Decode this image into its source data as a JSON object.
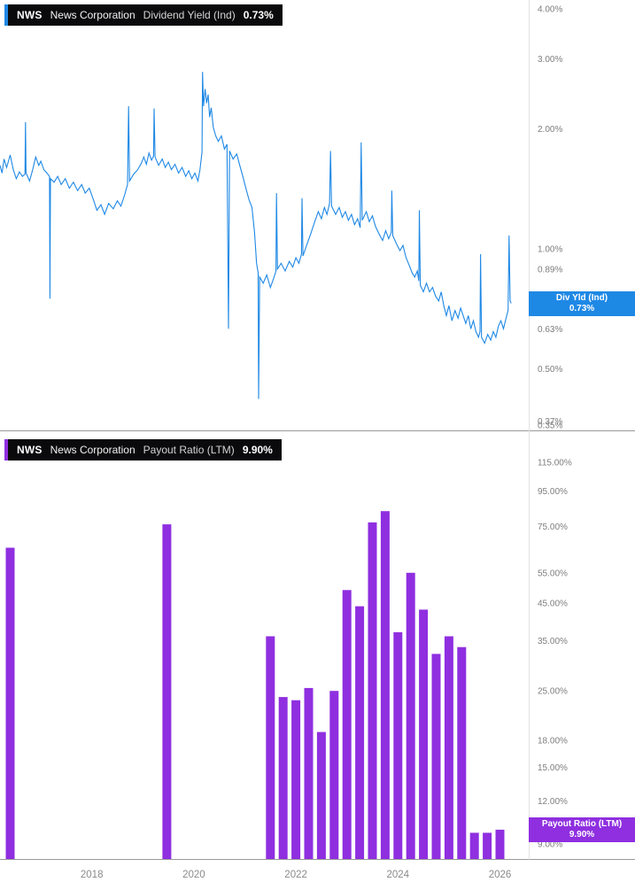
{
  "panes": [
    {
      "legend": {
        "ticker": "NWS",
        "company": "News Corporation",
        "metric": "Dividend Yield (Ind)",
        "value": "0.73%"
      },
      "flag": {
        "line1": "Div Yld (Ind)",
        "line2": "0.73%"
      },
      "accent_color": "#1e88e5"
    },
    {
      "legend": {
        "ticker": "NWS",
        "company": "News Corporation",
        "metric": "Payout Ratio (LTM)",
        "value": "9.90%"
      },
      "flag": {
        "line1": "Payout Ratio (LTM)",
        "line2": "9.90%"
      },
      "accent_color": "#8f2fe0"
    }
  ],
  "x_axis": {
    "years": [
      2018,
      2020,
      2022,
      2024,
      2026
    ],
    "labels": [
      "2018",
      "2020",
      "2022",
      "2024",
      "2026"
    ]
  },
  "colors": {
    "line_blue": "#1e88e5",
    "bar_purple": "#8f2fe0",
    "tick_text": "#7d7d7d",
    "year_text": "#8a8a8a",
    "divider": "#9a9a9a",
    "axis_vertical": "#e2e2e2",
    "plot_bg": "#ffffff",
    "legend_bg": "#0a0a0c"
  },
  "chart_data": [
    {
      "type": "line",
      "title": "NWS News Corporation Dividend Yield (Ind)",
      "series_name": "Dividend Yield (Ind)",
      "unit": "%",
      "color": "#1e88e5",
      "y_scale": "log",
      "last_value": 0.73,
      "y_ticks": [
        4.0,
        3.0,
        2.0,
        1.0,
        0.89,
        0.63,
        0.5,
        0.37,
        0.35
      ],
      "y_tick_labels": [
        "4.00%",
        "3.00%",
        "2.00%",
        "1.00%",
        "0.89%",
        "0.63%",
        "0.50%",
        "0.37%",
        "0.35%"
      ],
      "points": [
        [
          2016.2,
          1.62
        ],
        [
          2016.24,
          1.55
        ],
        [
          2016.28,
          1.68
        ],
        [
          2016.33,
          1.6
        ],
        [
          2016.4,
          1.72
        ],
        [
          2016.46,
          1.58
        ],
        [
          2016.52,
          1.5
        ],
        [
          2016.58,
          1.56
        ],
        [
          2016.64,
          1.52
        ],
        [
          2016.69,
          1.54
        ],
        [
          2016.7,
          2.08
        ],
        [
          2016.71,
          1.55
        ],
        [
          2016.78,
          1.48
        ],
        [
          2016.84,
          1.58
        ],
        [
          2016.9,
          1.7
        ],
        [
          2016.96,
          1.62
        ],
        [
          2017.0,
          1.66
        ],
        [
          2017.06,
          1.58
        ],
        [
          2017.12,
          1.55
        ],
        [
          2017.17,
          1.52
        ],
        [
          2017.18,
          0.75
        ],
        [
          2017.19,
          1.5
        ],
        [
          2017.26,
          1.47
        ],
        [
          2017.33,
          1.52
        ],
        [
          2017.4,
          1.45
        ],
        [
          2017.48,
          1.5
        ],
        [
          2017.56,
          1.42
        ],
        [
          2017.64,
          1.47
        ],
        [
          2017.72,
          1.4
        ],
        [
          2017.8,
          1.45
        ],
        [
          2017.87,
          1.38
        ],
        [
          2017.95,
          1.42
        ],
        [
          2018.03,
          1.33
        ],
        [
          2018.1,
          1.25
        ],
        [
          2018.18,
          1.29
        ],
        [
          2018.25,
          1.22
        ],
        [
          2018.33,
          1.3
        ],
        [
          2018.42,
          1.26
        ],
        [
          2018.5,
          1.32
        ],
        [
          2018.57,
          1.28
        ],
        [
          2018.64,
          1.36
        ],
        [
          2018.7,
          1.45
        ],
        [
          2018.72,
          2.28
        ],
        [
          2018.74,
          1.48
        ],
        [
          2018.82,
          1.54
        ],
        [
          2018.9,
          1.58
        ],
        [
          2018.97,
          1.64
        ],
        [
          2019.02,
          1.7
        ],
        [
          2019.07,
          1.63
        ],
        [
          2019.12,
          1.74
        ],
        [
          2019.17,
          1.67
        ],
        [
          2019.21,
          1.71
        ],
        [
          2019.22,
          2.25
        ],
        [
          2019.24,
          1.7
        ],
        [
          2019.31,
          1.62
        ],
        [
          2019.38,
          1.68
        ],
        [
          2019.44,
          1.6
        ],
        [
          2019.5,
          1.65
        ],
        [
          2019.56,
          1.58
        ],
        [
          2019.63,
          1.63
        ],
        [
          2019.7,
          1.55
        ],
        [
          2019.77,
          1.6
        ],
        [
          2019.84,
          1.52
        ],
        [
          2019.9,
          1.57
        ],
        [
          2019.96,
          1.5
        ],
        [
          2020.02,
          1.55
        ],
        [
          2020.08,
          1.48
        ],
        [
          2020.12,
          1.58
        ],
        [
          2020.16,
          1.75
        ],
        [
          2020.17,
          2.78
        ],
        [
          2020.19,
          2.28
        ],
        [
          2020.22,
          2.52
        ],
        [
          2020.25,
          2.32
        ],
        [
          2020.28,
          2.44
        ],
        [
          2020.31,
          2.14
        ],
        [
          2020.34,
          2.26
        ],
        [
          2020.38,
          2.02
        ],
        [
          2020.43,
          1.92
        ],
        [
          2020.48,
          1.86
        ],
        [
          2020.54,
          1.92
        ],
        [
          2020.6,
          1.78
        ],
        [
          2020.65,
          1.83
        ],
        [
          2020.68,
          0.63
        ],
        [
          2020.7,
          1.76
        ],
        [
          2020.77,
          1.68
        ],
        [
          2020.84,
          1.73
        ],
        [
          2020.9,
          1.62
        ],
        [
          2020.96,
          1.52
        ],
        [
          2021.02,
          1.42
        ],
        [
          2021.08,
          1.33
        ],
        [
          2021.14,
          1.27
        ],
        [
          2021.19,
          1.1
        ],
        [
          2021.23,
          0.92
        ],
        [
          2021.26,
          0.87
        ],
        [
          2021.27,
          0.42
        ],
        [
          2021.29,
          0.85
        ],
        [
          2021.36,
          0.82
        ],
        [
          2021.43,
          0.86
        ],
        [
          2021.5,
          0.8
        ],
        [
          2021.56,
          0.84
        ],
        [
          2021.61,
          0.88
        ],
        [
          2021.62,
          1.38
        ],
        [
          2021.64,
          0.89
        ],
        [
          2021.71,
          0.92
        ],
        [
          2021.79,
          0.88
        ],
        [
          2021.87,
          0.93
        ],
        [
          2021.94,
          0.9
        ],
        [
          2022.0,
          0.95
        ],
        [
          2022.06,
          0.92
        ],
        [
          2022.11,
          0.97
        ],
        [
          2022.12,
          1.34
        ],
        [
          2022.14,
          0.96
        ],
        [
          2022.21,
          1.02
        ],
        [
          2022.29,
          1.09
        ],
        [
          2022.37,
          1.17
        ],
        [
          2022.44,
          1.24
        ],
        [
          2022.5,
          1.19
        ],
        [
          2022.56,
          1.27
        ],
        [
          2022.61,
          1.22
        ],
        [
          2022.66,
          1.3
        ],
        [
          2022.68,
          1.76
        ],
        [
          2022.7,
          1.28
        ],
        [
          2022.78,
          1.22
        ],
        [
          2022.85,
          1.27
        ],
        [
          2022.91,
          1.2
        ],
        [
          2022.97,
          1.24
        ],
        [
          2023.03,
          1.18
        ],
        [
          2023.09,
          1.22
        ],
        [
          2023.15,
          1.15
        ],
        [
          2023.21,
          1.19
        ],
        [
          2023.26,
          1.13
        ],
        [
          2023.28,
          1.85
        ],
        [
          2023.3,
          1.18
        ],
        [
          2023.38,
          1.24
        ],
        [
          2023.44,
          1.17
        ],
        [
          2023.5,
          1.21
        ],
        [
          2023.56,
          1.14
        ],
        [
          2023.63,
          1.09
        ],
        [
          2023.7,
          1.05
        ],
        [
          2023.76,
          1.11
        ],
        [
          2023.82,
          1.06
        ],
        [
          2023.87,
          1.1
        ],
        [
          2023.88,
          1.4
        ],
        [
          2023.9,
          1.08
        ],
        [
          2023.97,
          1.03
        ],
        [
          2024.04,
          0.99
        ],
        [
          2024.1,
          1.02
        ],
        [
          2024.16,
          0.95
        ],
        [
          2024.22,
          0.91
        ],
        [
          2024.28,
          0.87
        ],
        [
          2024.33,
          0.85
        ],
        [
          2024.38,
          0.88
        ],
        [
          2024.41,
          0.83
        ],
        [
          2024.42,
          1.25
        ],
        [
          2024.44,
          0.81
        ],
        [
          2024.5,
          0.78
        ],
        [
          2024.56,
          0.82
        ],
        [
          2024.62,
          0.78
        ],
        [
          2024.68,
          0.8
        ],
        [
          2024.74,
          0.76
        ],
        [
          2024.8,
          0.74
        ],
        [
          2024.85,
          0.78
        ],
        [
          2024.9,
          0.72
        ],
        [
          2024.95,
          0.68
        ],
        [
          2025.0,
          0.72
        ],
        [
          2025.06,
          0.66
        ],
        [
          2025.12,
          0.7
        ],
        [
          2025.18,
          0.67
        ],
        [
          2025.23,
          0.71
        ],
        [
          2025.28,
          0.68
        ],
        [
          2025.33,
          0.65
        ],
        [
          2025.38,
          0.68
        ],
        [
          2025.43,
          0.63
        ],
        [
          2025.48,
          0.66
        ],
        [
          2025.53,
          0.62
        ],
        [
          2025.58,
          0.6
        ],
        [
          2025.61,
          0.62
        ],
        [
          2025.62,
          0.97
        ],
        [
          2025.64,
          0.6
        ],
        [
          2025.7,
          0.58
        ],
        [
          2025.76,
          0.61
        ],
        [
          2025.82,
          0.59
        ],
        [
          2025.87,
          0.62
        ],
        [
          2025.92,
          0.6
        ],
        [
          2025.97,
          0.64
        ],
        [
          2026.02,
          0.66
        ],
        [
          2026.07,
          0.63
        ],
        [
          2026.12,
          0.67
        ],
        [
          2026.16,
          0.7
        ],
        [
          2026.18,
          1.08
        ],
        [
          2026.2,
          0.74
        ],
        [
          2026.22,
          0.73
        ]
      ]
    },
    {
      "type": "bar",
      "title": "NWS News Corporation Payout Ratio (LTM)",
      "series_name": "Payout Ratio (LTM)",
      "unit": "%",
      "color": "#8f2fe0",
      "y_scale": "log",
      "last_value": 9.9,
      "y_ticks": [
        115,
        95,
        75,
        55,
        45,
        35,
        25,
        18,
        15,
        12,
        9
      ],
      "y_tick_labels": [
        "115.00%",
        "95.00%",
        "75.00%",
        "55.00%",
        "45.00%",
        "35.00%",
        "25.00%",
        "18.00%",
        "15.00%",
        "12.00%",
        "9.00%"
      ],
      "points": [
        [
          2016.4,
          65
        ],
        [
          2019.47,
          76
        ],
        [
          2021.5,
          36
        ],
        [
          2021.75,
          24
        ],
        [
          2022.0,
          23.5
        ],
        [
          2022.25,
          25.5
        ],
        [
          2022.5,
          19
        ],
        [
          2022.75,
          25
        ],
        [
          2023.0,
          49
        ],
        [
          2023.25,
          44
        ],
        [
          2023.5,
          77
        ],
        [
          2023.75,
          83
        ],
        [
          2024.0,
          37
        ],
        [
          2024.25,
          55
        ],
        [
          2024.5,
          43
        ],
        [
          2024.75,
          32
        ],
        [
          2025.0,
          36
        ],
        [
          2025.25,
          33.5
        ],
        [
          2025.5,
          9.7
        ],
        [
          2025.75,
          9.7
        ],
        [
          2026.0,
          9.9
        ]
      ]
    }
  ]
}
